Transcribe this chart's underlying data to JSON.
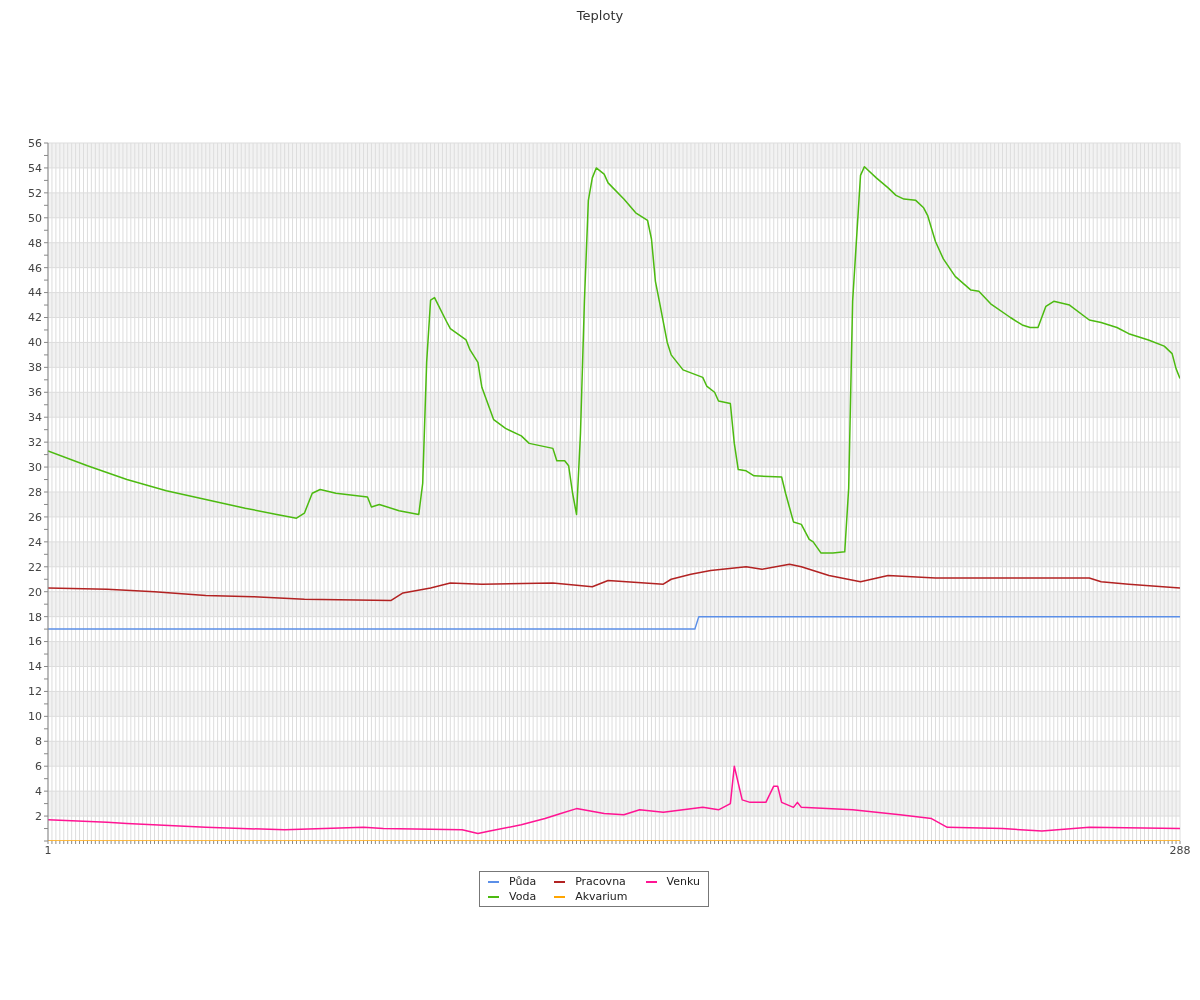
{
  "chart_data": {
    "type": "line",
    "title": "Teploty",
    "xlim": [
      1,
      288
    ],
    "xticks": [
      1,
      {
        "value": 2,
        "label": null
      },
      {
        "value": 3,
        "label": null
      },
      {
        "value": 4,
        "label": null
      },
      {
        "value": 5,
        "label": null
      },
      {
        "value": 6,
        "label": null
      },
      {
        "value": 7,
        "label": null
      },
      {
        "value": 8,
        "label": null
      },
      {
        "value": 9,
        "label": null
      },
      {
        "value": 10,
        "label": null
      },
      {
        "value": 11,
        "label": null
      },
      {
        "value": 12,
        "label": null
      },
      {
        "value": 13,
        "label": null
      },
      {
        "value": 14,
        "label": null
      },
      {
        "value": 15,
        "label": null
      },
      {
        "value": 16,
        "label": null
      },
      {
        "value": 17,
        "label": null
      },
      {
        "value": 18,
        "label": null
      },
      {
        "value": 19,
        "label": null
      },
      {
        "value": 20,
        "label": null
      },
      {
        "value": 21,
        "label": null
      },
      {
        "value": 22,
        "label": null
      },
      {
        "value": 23,
        "label": null
      },
      {
        "value": 24,
        "label": null
      },
      {
        "value": 25,
        "label": null
      },
      {
        "value": 26,
        "label": null
      },
      {
        "value": 27,
        "label": null
      },
      {
        "value": 28,
        "label": null
      },
      {
        "value": 29,
        "label": null
      },
      {
        "value": 30,
        "label": null
      },
      {
        "value": 31,
        "label": null
      },
      {
        "value": 32,
        "label": null
      },
      {
        "value": 33,
        "label": null
      },
      {
        "value": 34,
        "label": null
      },
      {
        "value": 35,
        "label": null
      },
      {
        "value": 36,
        "label": null
      },
      {
        "value": 37,
        "label": null
      },
      {
        "value": 38,
        "label": null
      },
      {
        "value": 39,
        "label": null
      },
      {
        "value": 40,
        "label": null
      },
      {
        "value": 41,
        "label": null
      },
      {
        "value": 42,
        "label": null
      },
      {
        "value": 43,
        "label": null
      },
      {
        "value": 44,
        "label": null
      },
      {
        "value": 45,
        "label": null
      },
      {
        "value": 46,
        "label": null
      },
      {
        "value": 47,
        "label": null
      },
      {
        "value": 48,
        "label": null
      },
      {
        "value": 49,
        "label": null
      },
      {
        "value": 50,
        "label": null
      },
      {
        "value": 51,
        "label": null
      },
      {
        "value": 52,
        "label": null
      },
      {
        "value": 53,
        "label": null
      },
      {
        "value": 54,
        "label": null
      },
      {
        "value": 55,
        "label": null
      },
      {
        "value": 56,
        "label": null
      },
      {
        "value": 57,
        "label": null
      },
      {
        "value": 58,
        "label": null
      },
      {
        "value": 59,
        "label": null
      },
      {
        "value": 60,
        "label": null
      },
      {
        "value": 61,
        "label": null
      },
      {
        "value": 62,
        "label": null
      },
      {
        "value": 63,
        "label": null
      },
      {
        "value": 64,
        "label": null
      },
      {
        "value": 65,
        "label": null
      },
      {
        "value": 66,
        "label": null
      },
      {
        "value": 67,
        "label": null
      },
      {
        "value": 68,
        "label": null
      },
      {
        "value": 69,
        "label": null
      },
      {
        "value": 70,
        "label": null
      },
      {
        "value": 71,
        "label": null
      },
      {
        "value": 72,
        "label": null
      },
      {
        "value": 73,
        "label": null
      },
      {
        "value": 74,
        "label": null
      },
      {
        "value": 75,
        "label": null
      },
      {
        "value": 76,
        "label": null
      },
      {
        "value": 77,
        "label": null
      },
      {
        "value": 78,
        "label": null
      },
      {
        "value": 79,
        "label": null
      },
      {
        "value": 80,
        "label": null
      },
      {
        "value": 81,
        "label": null
      },
      {
        "value": 82,
        "label": null
      },
      {
        "value": 83,
        "label": null
      },
      {
        "value": 84,
        "label": null
      },
      {
        "value": 85,
        "label": null
      },
      {
        "value": 86,
        "label": null
      },
      {
        "value": 87,
        "label": null
      },
      {
        "value": 88,
        "label": null
      },
      {
        "value": 89,
        "label": null
      },
      {
        "value": 90,
        "label": null
      },
      {
        "value": 91,
        "label": null
      },
      {
        "value": 92,
        "label": null
      },
      {
        "value": 93,
        "label": null
      },
      {
        "value": 94,
        "label": null
      },
      {
        "value": 95,
        "label": null
      },
      {
        "value": 96,
        "label": null
      },
      {
        "value": 97,
        "label": null
      },
      {
        "value": 98,
        "label": null
      },
      {
        "value": 99,
        "label": null
      },
      {
        "value": 100,
        "label": null
      },
      {
        "value": 101,
        "label": null
      },
      {
        "value": 102,
        "label": null
      },
      {
        "value": 103,
        "label": null
      },
      {
        "value": 104,
        "label": null
      },
      {
        "value": 105,
        "label": null
      },
      {
        "value": 106,
        "label": null
      },
      {
        "value": 107,
        "label": null
      },
      {
        "value": 108,
        "label": null
      },
      {
        "value": 109,
        "label": null
      },
      {
        "value": 110,
        "label": null
      },
      {
        "value": 111,
        "label": null
      },
      {
        "value": 112,
        "label": null
      },
      {
        "value": 113,
        "label": null
      },
      {
        "value": 114,
        "label": null
      },
      {
        "value": 115,
        "label": null
      },
      {
        "value": 116,
        "label": null
      },
      {
        "value": 117,
        "label": null
      },
      {
        "value": 118,
        "label": null
      },
      {
        "value": 119,
        "label": null
      },
      {
        "value": 120,
        "label": null
      },
      {
        "value": 121,
        "label": null
      },
      {
        "value": 122,
        "label": null
      },
      {
        "value": 123,
        "label": null
      },
      {
        "value": 124,
        "label": null
      },
      {
        "value": 125,
        "label": null
      },
      {
        "value": 126,
        "label": null
      },
      {
        "value": 127,
        "label": null
      },
      {
        "value": 128,
        "label": null
      },
      {
        "value": 129,
        "label": null
      },
      {
        "value": 130,
        "label": null
      },
      {
        "value": 131,
        "label": null
      },
      {
        "value": 132,
        "label": null
      },
      {
        "value": 133,
        "label": null
      },
      {
        "value": 134,
        "label": null
      },
      {
        "value": 135,
        "label": null
      },
      {
        "value": 136,
        "label": null
      },
      {
        "value": 137,
        "label": null
      },
      {
        "value": 138,
        "label": null
      },
      {
        "value": 139,
        "label": null
      },
      {
        "value": 140,
        "label": null
      },
      {
        "value": 141,
        "label": null
      },
      {
        "value": 142,
        "label": null
      },
      {
        "value": 143,
        "label": null
      },
      {
        "value": 144,
        "label": null
      },
      {
        "value": 145,
        "label": null
      },
      {
        "value": 146,
        "label": null
      },
      {
        "value": 147,
        "label": null
      },
      {
        "value": 148,
        "label": null
      },
      {
        "value": 149,
        "label": null
      },
      {
        "value": 150,
        "label": null
      },
      {
        "value": 151,
        "label": null
      },
      {
        "value": 152,
        "label": null
      },
      {
        "value": 153,
        "label": null
      },
      {
        "value": 154,
        "label": null
      },
      {
        "value": 155,
        "label": null
      },
      {
        "value": 156,
        "label": null
      },
      {
        "value": 157,
        "label": null
      },
      {
        "value": 158,
        "label": null
      },
      {
        "value": 159,
        "label": null
      },
      {
        "value": 160,
        "label": null
      },
      {
        "value": 161,
        "label": null
      },
      {
        "value": 162,
        "label": null
      },
      {
        "value": 163,
        "label": null
      },
      {
        "value": 164,
        "label": null
      },
      {
        "value": 165,
        "label": null
      },
      {
        "value": 166,
        "label": null
      },
      {
        "value": 167,
        "label": null
      },
      {
        "value": 168,
        "label": null
      },
      {
        "value": 169,
        "label": null
      },
      {
        "value": 170,
        "label": null
      },
      {
        "value": 171,
        "label": null
      },
      {
        "value": 172,
        "label": null
      },
      {
        "value": 173,
        "label": null
      },
      {
        "value": 174,
        "label": null
      },
      {
        "value": 175,
        "label": null
      },
      {
        "value": 176,
        "label": null
      },
      {
        "value": 177,
        "label": null
      },
      {
        "value": 178,
        "label": null
      },
      {
        "value": 179,
        "label": null
      },
      {
        "value": 180,
        "label": null
      },
      {
        "value": 181,
        "label": null
      },
      {
        "value": 182,
        "label": null
      },
      {
        "value": 183,
        "label": null
      },
      {
        "value": 184,
        "label": null
      },
      {
        "value": 185,
        "label": null
      },
      {
        "value": 186,
        "label": null
      },
      {
        "value": 187,
        "label": null
      },
      {
        "value": 188,
        "label": null
      },
      {
        "value": 189,
        "label": null
      },
      {
        "value": 190,
        "label": null
      },
      {
        "value": 191,
        "label": null
      },
      {
        "value": 192,
        "label": null
      },
      {
        "value": 193,
        "label": null
      },
      {
        "value": 194,
        "label": null
      },
      {
        "value": 195,
        "label": null
      },
      {
        "value": 196,
        "label": null
      },
      {
        "value": 197,
        "label": null
      },
      {
        "value": 198,
        "label": null
      },
      {
        "value": 199,
        "label": null
      },
      {
        "value": 200,
        "label": null
      },
      {
        "value": 201,
        "label": null
      },
      {
        "value": 202,
        "label": null
      },
      {
        "value": 203,
        "label": null
      },
      {
        "value": 204,
        "label": null
      },
      {
        "value": 205,
        "label": null
      },
      {
        "value": 206,
        "label": null
      },
      {
        "value": 207,
        "label": null
      },
      {
        "value": 208,
        "label": null
      },
      {
        "value": 209,
        "label": null
      },
      {
        "value": 210,
        "label": null
      },
      {
        "value": 211,
        "label": null
      },
      {
        "value": 212,
        "label": null
      },
      {
        "value": 213,
        "label": null
      },
      {
        "value": 214,
        "label": null
      },
      {
        "value": 215,
        "label": null
      },
      {
        "value": 216,
        "label": null
      },
      {
        "value": 217,
        "label": null
      },
      {
        "value": 218,
        "label": null
      },
      {
        "value": 219,
        "label": null
      },
      {
        "value": 220,
        "label": null
      },
      {
        "value": 221,
        "label": null
      },
      {
        "value": 222,
        "label": null
      },
      {
        "value": 223,
        "label": null
      },
      {
        "value": 224,
        "label": null
      },
      {
        "value": 225,
        "label": null
      },
      {
        "value": 226,
        "label": null
      },
      {
        "value": 227,
        "label": null
      },
      {
        "value": 228,
        "label": null
      },
      {
        "value": 229,
        "label": null
      },
      {
        "value": 230,
        "label": null
      },
      {
        "value": 231,
        "label": null
      },
      {
        "value": 232,
        "label": null
      },
      {
        "value": 233,
        "label": null
      },
      {
        "value": 234,
        "label": null
      },
      {
        "value": 235,
        "label": null
      },
      {
        "value": 236,
        "label": null
      },
      {
        "value": 237,
        "label": null
      },
      {
        "value": 238,
        "label": null
      },
      {
        "value": 239,
        "label": null
      },
      {
        "value": 240,
        "label": null
      },
      {
        "value": 241,
        "label": null
      },
      {
        "value": 242,
        "label": null
      },
      {
        "value": 243,
        "label": null
      },
      {
        "value": 244,
        "label": null
      },
      {
        "value": 245,
        "label": null
      },
      {
        "value": 246,
        "label": null
      },
      {
        "value": 247,
        "label": null
      },
      {
        "value": 248,
        "label": null
      },
      {
        "value": 249,
        "label": null
      },
      {
        "value": 250,
        "label": null
      },
      {
        "value": 251,
        "label": null
      },
      {
        "value": 252,
        "label": null
      },
      {
        "value": 253,
        "label": null
      },
      {
        "value": 254,
        "label": null
      },
      {
        "value": 255,
        "label": null
      },
      {
        "value": 256,
        "label": null
      },
      {
        "value": 257,
        "label": null
      },
      {
        "value": 258,
        "label": null
      },
      {
        "value": 259,
        "label": null
      },
      {
        "value": 260,
        "label": null
      },
      {
        "value": 261,
        "label": null
      },
      {
        "value": 262,
        "label": null
      },
      {
        "value": 263,
        "label": null
      },
      {
        "value": 264,
        "label": null
      },
      {
        "value": 265,
        "label": null
      },
      {
        "value": 266,
        "label": null
      },
      {
        "value": 267,
        "label": null
      },
      {
        "value": 268,
        "label": null
      },
      {
        "value": 269,
        "label": null
      },
      {
        "value": 270,
        "label": null
      },
      {
        "value": 271,
        "label": null
      },
      {
        "value": 272,
        "label": null
      },
      {
        "value": 273,
        "label": null
      },
      {
        "value": 274,
        "label": null
      },
      {
        "value": 275,
        "label": null
      },
      {
        "value": 276,
        "label": null
      },
      {
        "value": 277,
        "label": null
      },
      {
        "value": 278,
        "label": null
      },
      {
        "value": 279,
        "label": null
      },
      {
        "value": 280,
        "label": null
      },
      {
        "value": 281,
        "label": null
      },
      {
        "value": 282,
        "label": null
      },
      {
        "value": 283,
        "label": null
      },
      {
        "value": 284,
        "label": null
      },
      {
        "value": 285,
        "label": null
      },
      {
        "value": 286,
        "label": null
      },
      {
        "value": 287,
        "label": null
      },
      288
    ],
    "ylim": [
      0,
      56
    ],
    "yticks": [
      {
        "value": 0,
        "label": null
      },
      {
        "value": 1,
        "label": null
      },
      2,
      {
        "value": 3,
        "label": null
      },
      4,
      {
        "value": 5,
        "label": null
      },
      6,
      {
        "value": 7,
        "label": null
      },
      8,
      {
        "value": 9,
        "label": null
      },
      10,
      {
        "value": 11,
        "label": null
      },
      12,
      {
        "value": 13,
        "label": null
      },
      14,
      {
        "value": 15,
        "label": null
      },
      16,
      {
        "value": 17,
        "label": null
      },
      18,
      {
        "value": 19,
        "label": null
      },
      20,
      {
        "value": 21,
        "label": null
      },
      22,
      {
        "value": 23,
        "label": null
      },
      24,
      {
        "value": 25,
        "label": null
      },
      26,
      {
        "value": 27,
        "label": null
      },
      28,
      {
        "value": 29,
        "label": null
      },
      30,
      {
        "value": 31,
        "label": null
      },
      32,
      {
        "value": 33,
        "label": null
      },
      34,
      {
        "value": 35,
        "label": null
      },
      36,
      {
        "value": 37,
        "label": null
      },
      38,
      {
        "value": 39,
        "label": null
      },
      40,
      {
        "value": 41,
        "label": null
      },
      42,
      {
        "value": 43,
        "label": null
      },
      44,
      {
        "value": 45,
        "label": null
      },
      46,
      {
        "value": 47,
        "label": null
      },
      48,
      {
        "value": 49,
        "label": null
      },
      50,
      {
        "value": 51,
        "label": null
      },
      52,
      {
        "value": 53,
        "label": null
      },
      54,
      {
        "value": 55,
        "label": null
      },
      56
    ],
    "grid": true,
    "legend": "bottom",
    "marker": "none",
    "line_style": "solid",
    "series": [
      {
        "name": "Půda",
        "color": "#5b8fe8",
        "x": [
          1,
          165,
          166,
          288
        ],
        "values": [
          17,
          17,
          18,
          18
        ]
      },
      {
        "name": "Voda",
        "color": "#4cba10",
        "x": [
          1,
          11,
          21,
          31,
          41,
          51,
          59,
          64,
          66,
          68,
          70,
          74,
          82,
          83,
          85,
          90,
          95,
          96,
          97,
          98,
          99,
          102,
          103,
          107,
          108,
          110,
          111,
          114,
          117,
          121,
          123,
          129,
          130,
          132,
          133,
          134,
          135,
          136,
          137,
          138,
          139,
          140,
          142,
          143,
          147,
          150,
          153,
          154,
          155,
          156,
          158,
          159,
          161,
          162,
          167,
          168,
          170,
          171,
          174,
          175,
          176,
          178,
          180,
          187,
          188,
          190,
          192,
          194,
          195,
          197,
          200,
          203,
          204,
          205,
          207,
          208,
          209,
          211,
          214,
          216,
          218,
          221,
          223,
          224,
          226,
          228,
          231,
          235,
          237,
          240,
          245,
          248,
          250,
          252,
          254,
          256,
          260,
          265,
          268,
          272,
          275,
          280,
          284,
          286,
          287,
          288
        ],
        "values": [
          31.3,
          30.1,
          29.0,
          28.1,
          27.4,
          26.7,
          26.2,
          25.9,
          26.3,
          27.9,
          28.2,
          27.9,
          27.6,
          26.8,
          27.0,
          26.5,
          26.2,
          28.7,
          38.4,
          43.4,
          43.6,
          41.7,
          41.1,
          40.2,
          39.4,
          38.4,
          36.4,
          33.8,
          33.1,
          32.5,
          31.9,
          31.5,
          30.5,
          30.5,
          30.1,
          27.9,
          26.2,
          32.7,
          43.3,
          51.4,
          53.2,
          54.0,
          53.5,
          52.8,
          51.5,
          50.4,
          49.8,
          48.3,
          44.9,
          43.3,
          40.0,
          39.0,
          38.2,
          37.8,
          37.2,
          36.5,
          36.0,
          35.3,
          35.1,
          31.9,
          29.8,
          29.7,
          29.3,
          29.2,
          27.9,
          25.6,
          25.4,
          24.2,
          24.0,
          23.1,
          23.1,
          23.2,
          28.3,
          43.3,
          53.4,
          54.1,
          53.8,
          53.2,
          52.4,
          51.8,
          51.5,
          51.4,
          50.8,
          50.2,
          48.1,
          46.7,
          45.3,
          44.2,
          44.1,
          43.1,
          42.0,
          41.4,
          41.2,
          41.2,
          42.9,
          43.3,
          43.0,
          41.8,
          41.6,
          41.2,
          40.7,
          40.2,
          39.7,
          39.1,
          37.9,
          37.1
        ]
      },
      {
        "name": "Pracovna",
        "color": "#b22222",
        "x": [
          1,
          16,
          28,
          41,
          53,
          66,
          88,
          91,
          98,
          103,
          111,
          129,
          139,
          143,
          157,
          159,
          164,
          169,
          178,
          182,
          189,
          192,
          199,
          207,
          214,
          226,
          265,
          268,
          275,
          288
        ],
        "values": [
          20.3,
          20.2,
          20.0,
          19.7,
          19.6,
          19.4,
          19.3,
          19.9,
          20.3,
          20.7,
          20.6,
          20.7,
          20.4,
          20.9,
          20.6,
          21.0,
          21.4,
          21.7,
          22.0,
          21.8,
          22.2,
          22.0,
          21.3,
          20.8,
          21.3,
          21.1,
          21.1,
          20.8,
          20.6,
          20.3
        ]
      },
      {
        "name": "Akvarium",
        "color": "#ffa500",
        "x": [
          1,
          288
        ],
        "values": [
          0,
          0
        ]
      },
      {
        "name": "Venku",
        "color": "#ff1493",
        "x": [
          1,
          16,
          21,
          41,
          61,
          81,
          86,
          106,
          110,
          113,
          121,
          127,
          131,
          135,
          142,
          147,
          151,
          157,
          167,
          169,
          171,
          174,
          175,
          177,
          179,
          183,
          185,
          186,
          187,
          190,
          191,
          192,
          205,
          217,
          225,
          229,
          243,
          253,
          265,
          288
        ],
        "values": [
          1.7,
          1.5,
          1.4,
          1.1,
          0.9,
          1.1,
          1.0,
          0.9,
          0.6,
          0.8,
          1.3,
          1.8,
          2.2,
          2.6,
          2.2,
          2.1,
          2.5,
          2.3,
          2.7,
          2.6,
          2.5,
          3.0,
          6.0,
          3.3,
          3.1,
          3.1,
          4.4,
          4.4,
          3.1,
          2.7,
          3.1,
          2.7,
          2.5,
          2.1,
          1.8,
          1.1,
          1.0,
          0.8,
          1.1,
          1.0
        ]
      }
    ]
  }
}
